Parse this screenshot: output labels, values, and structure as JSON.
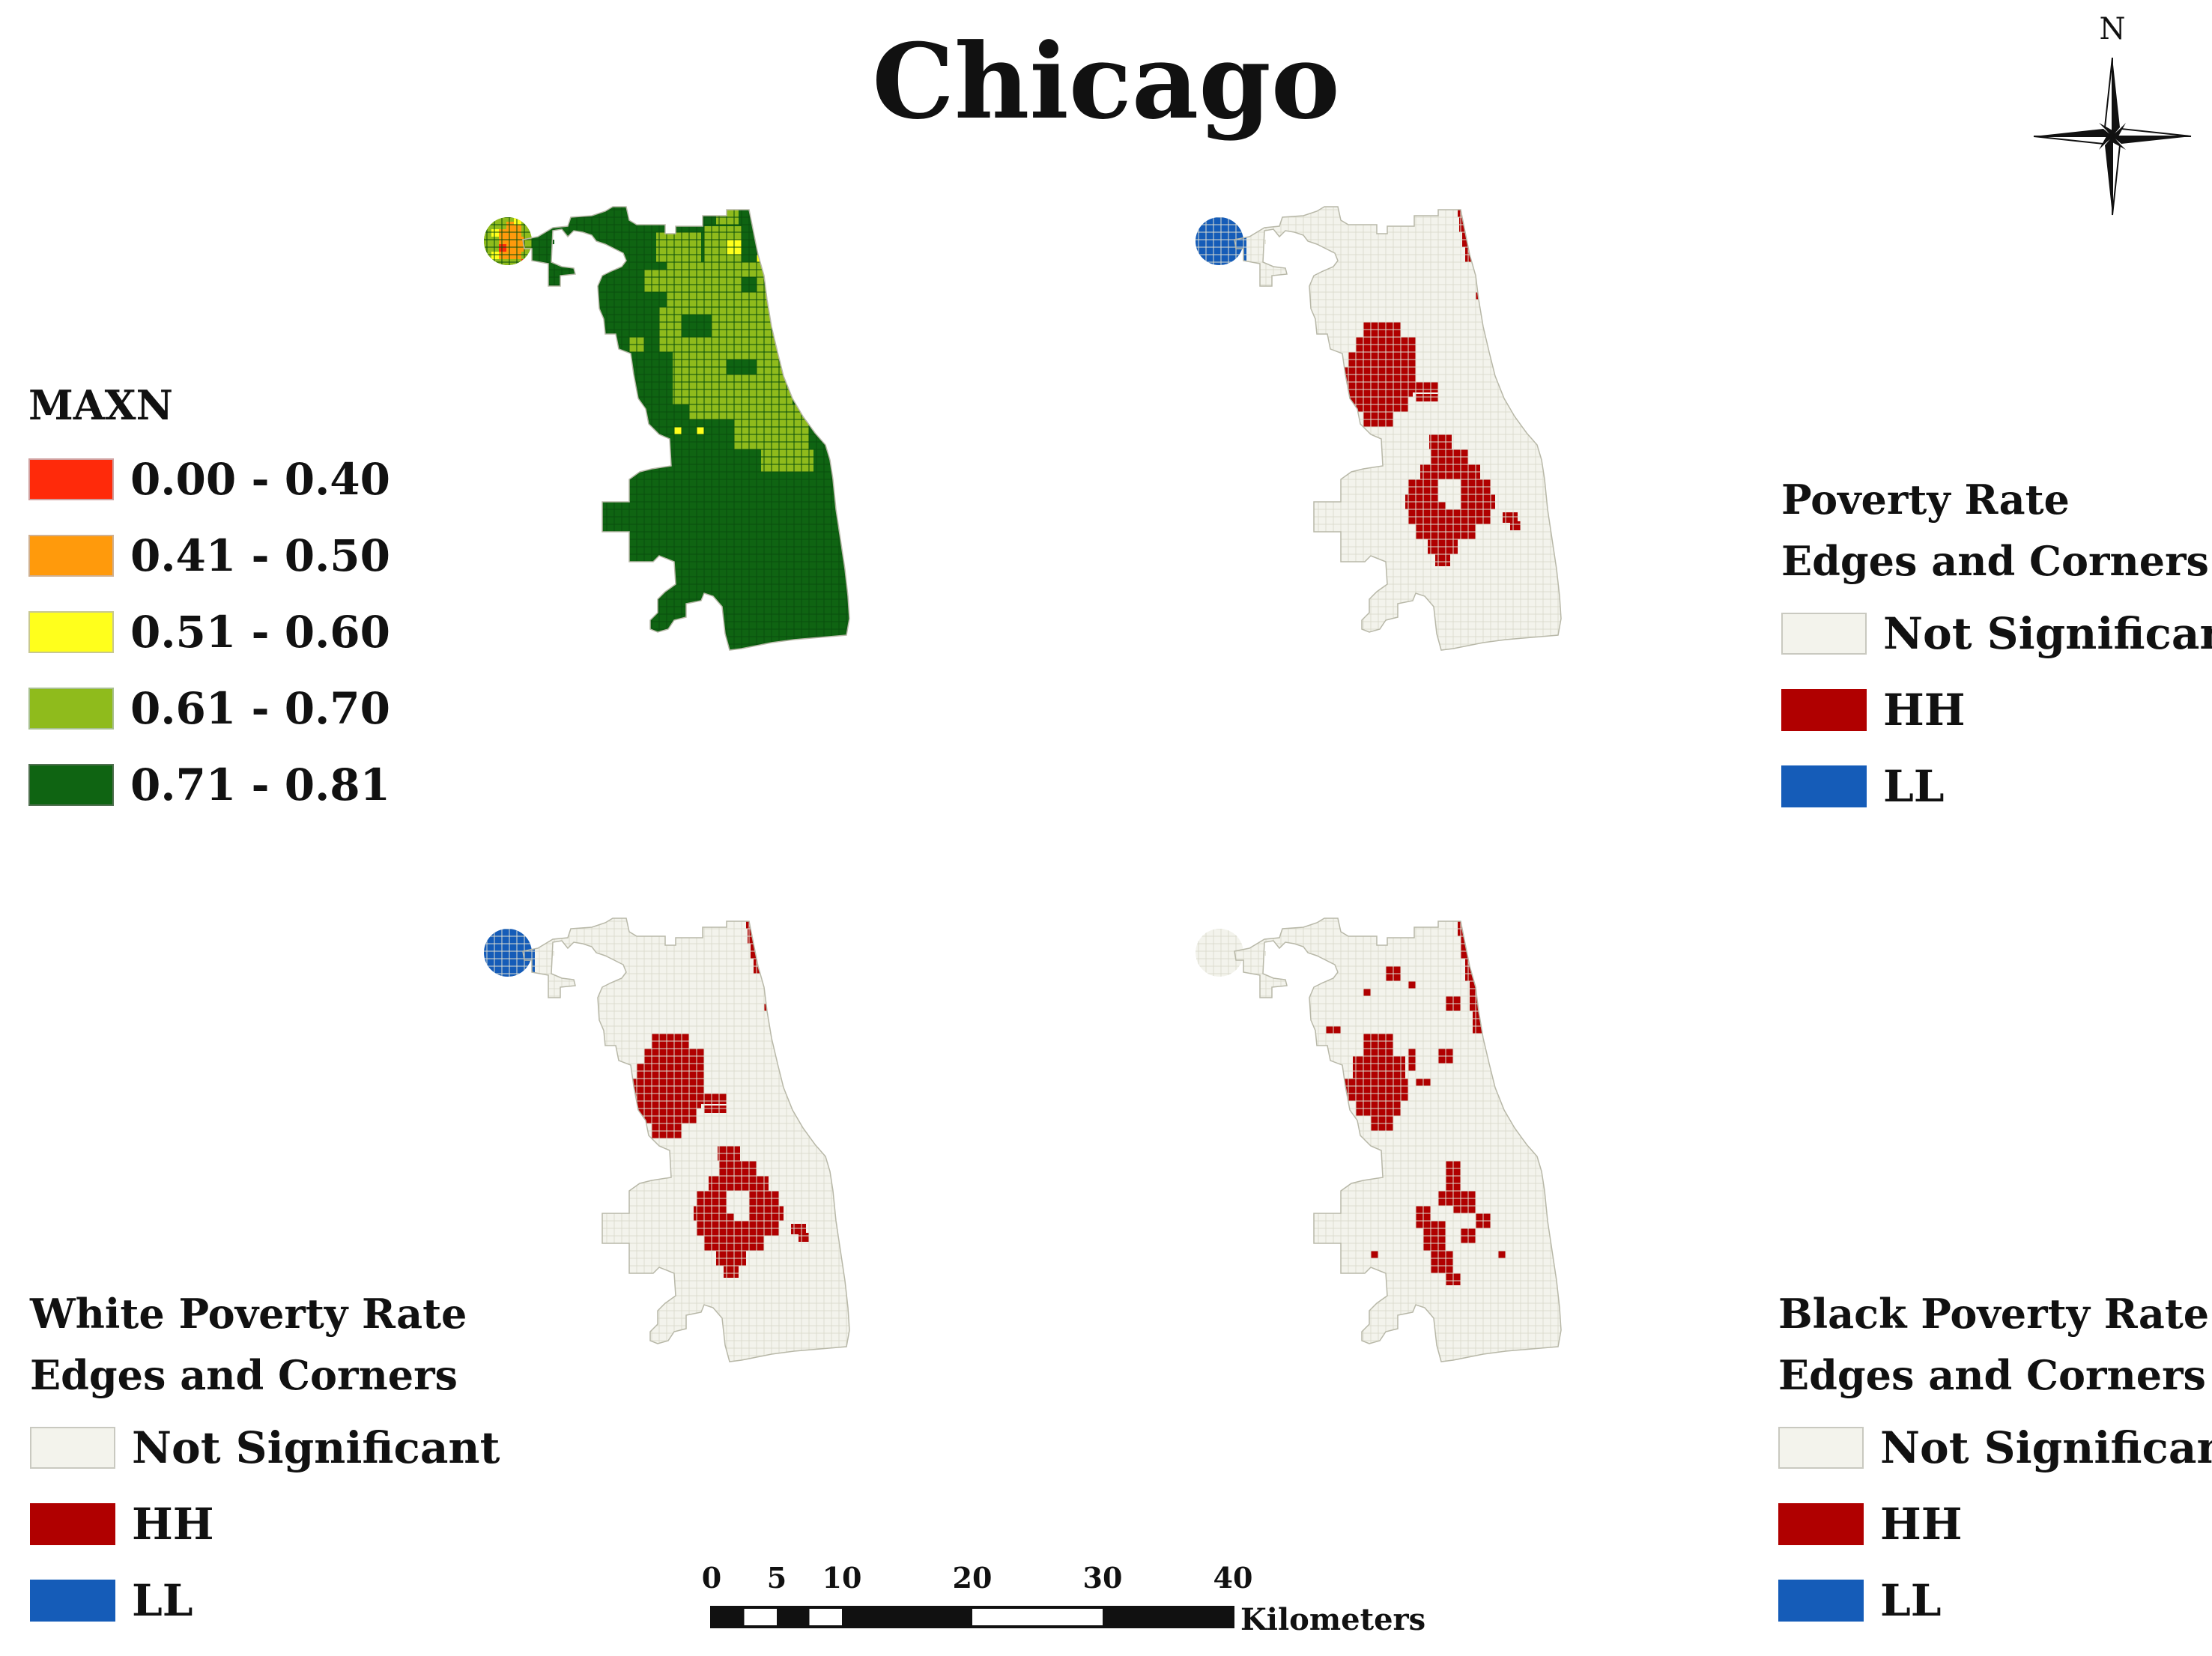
{
  "title": "Chicago",
  "north_label": "N",
  "colors": {
    "not_significant": "#f3f3ec",
    "not_significant_grid": "#dcdccf",
    "hh": "#b00000",
    "ll": "#155cb8",
    "maxn_0_40": "#ff2a0a",
    "maxn_0_50": "#ff9a0c",
    "maxn_0_60": "#ffff1c",
    "maxn_0_70": "#8fbb1c",
    "maxn_0_81": "#0f6412"
  },
  "legends": {
    "maxn": {
      "title": "MAXN",
      "items": [
        {
          "label": "0.00 - 0.40",
          "color": "#ff2a0a"
        },
        {
          "label": "0.41 - 0.50",
          "color": "#ff9a0c"
        },
        {
          "label": "0.51 - 0.60",
          "color": "#ffff1c"
        },
        {
          "label": "0.61 - 0.70",
          "color": "#8fbb1c"
        },
        {
          "label": "0.71 - 0.81",
          "color": "#0f6412"
        }
      ]
    },
    "poverty": {
      "title_line1": "Poverty Rate",
      "title_line2": "Edges and Corners",
      "items": [
        {
          "label": "Not Significant",
          "color": "#f3f3ec"
        },
        {
          "label": "HH",
          "color": "#b00000"
        },
        {
          "label": "LL",
          "color": "#155cb8"
        }
      ]
    },
    "white": {
      "title_line1": "White Poverty Rate",
      "title_line2": "Edges and Corners",
      "items": [
        {
          "label": "Not Significant",
          "color": "#f3f3ec"
        },
        {
          "label": "HH",
          "color": "#b00000"
        },
        {
          "label": "LL",
          "color": "#155cb8"
        }
      ]
    },
    "black": {
      "title_line1": "Black Poverty Rate",
      "title_line2": "Edges and Corners",
      "items": [
        {
          "label": "Not Significant",
          "color": "#f3f3ec"
        },
        {
          "label": "HH",
          "color": "#b00000"
        },
        {
          "label": "LL",
          "color": "#155cb8"
        }
      ]
    }
  },
  "scale_bar": {
    "ticks": [
      "0",
      "5",
      "10",
      "20",
      "30",
      "40"
    ],
    "unit": "Kilometers"
  }
}
